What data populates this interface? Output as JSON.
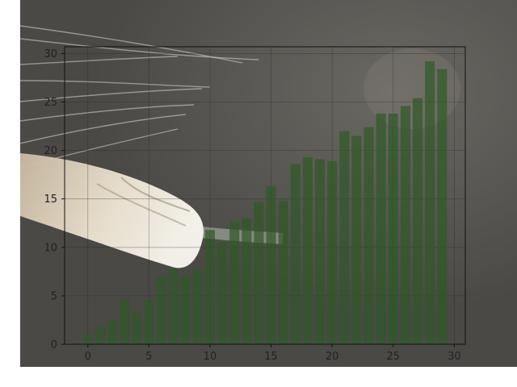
{
  "chart_data": {
    "type": "bar",
    "x": [
      0,
      1,
      2,
      3,
      4,
      5,
      6,
      7,
      8,
      9,
      10,
      11,
      12,
      13,
      14,
      15,
      16,
      17,
      18,
      19,
      20,
      21,
      22,
      23,
      24,
      25,
      26,
      27,
      28,
      29
    ],
    "values": [
      1.0,
      1.8,
      2.5,
      4.7,
      3.3,
      4.5,
      7.0,
      7.8,
      7.1,
      7.7,
      11.8,
      10.6,
      12.7,
      13.0,
      14.7,
      16.3,
      14.8,
      18.6,
      19.3,
      19.1,
      18.9,
      22.0,
      21.5,
      22.4,
      23.8,
      23.8,
      24.6,
      25.4,
      29.2,
      28.4
    ],
    "xlim": [
      -1.9,
      30.9
    ],
    "ylim": [
      0,
      30.7
    ],
    "xticks": [
      0,
      5,
      10,
      15,
      20,
      25,
      30
    ],
    "yticks": [
      0,
      5,
      10,
      15,
      20,
      25,
      30
    ],
    "xticklabels": [
      "0",
      "5",
      "10",
      "15",
      "20",
      "25",
      "30"
    ],
    "yticklabels": [
      "0",
      "5",
      "10",
      "15",
      "20",
      "25",
      "30"
    ],
    "bar_color": "#2e5a25",
    "bar_opacity": 0.7,
    "grid": true,
    "background": "photo of a cat's paw and whiskers on grey fur",
    "title": "",
    "xlabel": "",
    "ylabel": ""
  }
}
